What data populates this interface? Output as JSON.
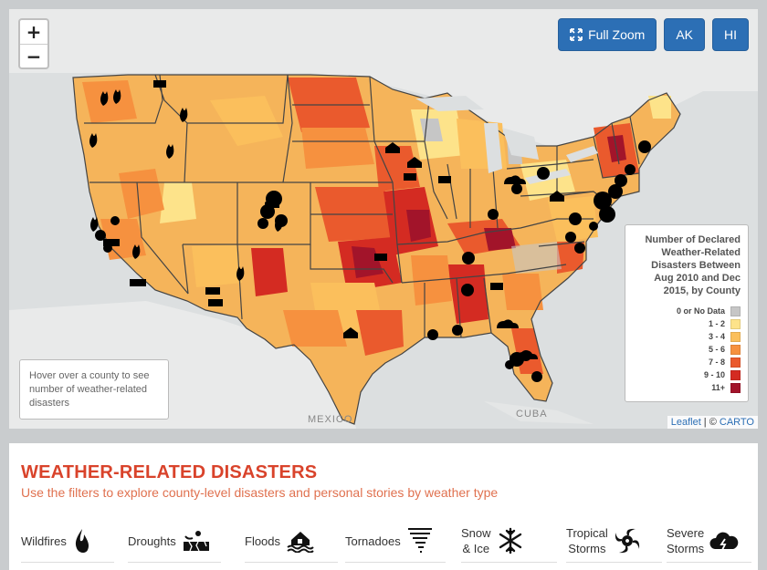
{
  "map": {
    "zoom_in": "+",
    "zoom_out": "−",
    "buttons": {
      "full_zoom": "Full Zoom",
      "ak": "AK",
      "hi": "HI"
    },
    "labels": {
      "mexico": "MEXICO",
      "cuba": "CUBA"
    },
    "attribution": {
      "leaflet": "Leaflet",
      "separator": " | © ",
      "carto": "CARTO"
    },
    "hover_hint": "Hover over a county to see number of weather-related disasters",
    "colors": {
      "land_base": "#f5b45a",
      "water": "#dcdfe0",
      "foreign_land": "#e9eaea",
      "state_border": "#444444"
    }
  },
  "legend": {
    "title": "Number of Declared Weather-Related Disasters Between Aug 2010 and Dec 2015, by County",
    "items": [
      {
        "label": "0 or No Data",
        "color": "#c6c6c6"
      },
      {
        "label": "1 - 2",
        "color": "#fde38a"
      },
      {
        "label": "3 - 4",
        "color": "#fbbf5c"
      },
      {
        "label": "5 - 6",
        "color": "#f6913f"
      },
      {
        "label": "7 - 8",
        "color": "#ea5a2d"
      },
      {
        "label": "9 - 10",
        "color": "#d42b22"
      },
      {
        "label": "11+",
        "color": "#a2142a"
      }
    ]
  },
  "panel": {
    "title": "WEATHER-RELATED DISASTERS",
    "subtitle": "Use the filters to explore county-level disasters and personal stories by weather type",
    "filters": [
      {
        "label": "Wildfires",
        "icon": "flame-icon"
      },
      {
        "label": "Droughts",
        "icon": "cracked-ground-icon"
      },
      {
        "label": "Floods",
        "icon": "flooded-house-icon"
      },
      {
        "label": "Tornadoes",
        "icon": "tornado-icon"
      },
      {
        "label_line1": "Snow",
        "label_line2": "& Ice",
        "icon": "snowflake-icon"
      },
      {
        "label_line1": "Tropical",
        "label_line2": "Storms",
        "icon": "hurricane-icon"
      },
      {
        "label_line1": "Severe",
        "label_line2": "Storms",
        "icon": "storm-cloud-icon"
      }
    ]
  }
}
